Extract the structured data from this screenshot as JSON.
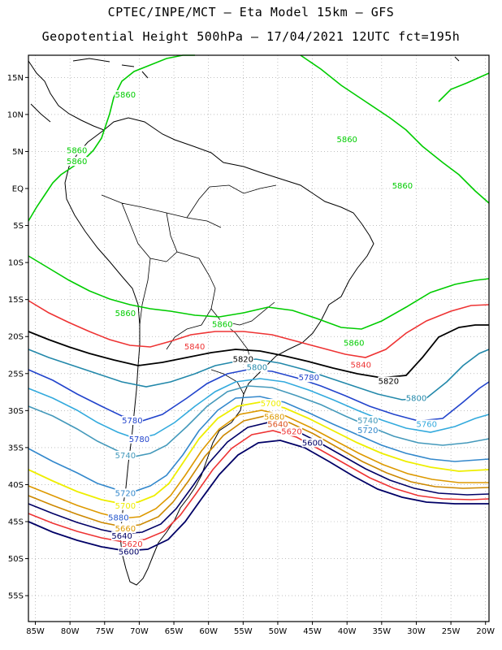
{
  "title": {
    "line1": "CPTEC/INPE/MCT  –  Eta Model 15km – GFS",
    "line2": "Geopotential Height 500hPa – 17/04/2021 12UTC fct=195h"
  },
  "axes": {
    "lat_labels": [
      "15N",
      "10N",
      "5N",
      "EQ",
      "5S",
      "10S",
      "15S",
      "20S",
      "25S",
      "30S",
      "35S",
      "40S",
      "45S",
      "50S",
      "55S"
    ],
    "lat_values": [
      15,
      10,
      5,
      0,
      -5,
      -10,
      -15,
      -20,
      -25,
      -30,
      -35,
      -40,
      -45,
      -50,
      -55
    ],
    "lon_labels": [
      "85W",
      "80W",
      "75W",
      "70W",
      "65W",
      "60W",
      "55W",
      "50W",
      "45W",
      "40W",
      "35W",
      "30W",
      "25W",
      "20W"
    ],
    "lon_values": [
      -85,
      -80,
      -75,
      -70,
      -65,
      -60,
      -55,
      -50,
      -45,
      -40,
      -35,
      -30,
      -25,
      -20
    ]
  },
  "contours": [
    {
      "level": "5860",
      "color": "#00cc00",
      "label_points": [
        [
          -72,
          12.5
        ],
        [
          -79,
          5
        ],
        [
          -79,
          3.5
        ],
        [
          -40,
          6.5
        ],
        [
          -32,
          0.2
        ],
        [
          -72,
          -17
        ],
        [
          -58,
          -18.5
        ],
        [
          -39,
          -21
        ]
      ]
    },
    {
      "level": "5840",
      "color": "#ee3333",
      "label_points": [
        [
          -62,
          -21.5
        ],
        [
          -38,
          -24
        ]
      ]
    },
    {
      "level": "5820",
      "color": "#000000",
      "label_points": [
        [
          -55,
          -23.2
        ],
        [
          -34,
          -26.2
        ]
      ]
    },
    {
      "level": "5800",
      "color": "#2288aa",
      "label_points": [
        [
          -53,
          -24.3
        ],
        [
          -30,
          -28.5
        ]
      ]
    },
    {
      "level": "5780",
      "color": "#2244cc",
      "label_points": [
        [
          -45.5,
          -25.7
        ],
        [
          -71,
          -31.5
        ],
        [
          -70,
          -34
        ]
      ]
    },
    {
      "level": "5760",
      "color": "#33aadd",
      "label_points": [
        [
          -28.5,
          -32
        ]
      ]
    },
    {
      "level": "5740",
      "color": "#4499bb",
      "label_points": [
        [
          -72,
          -36.2
        ],
        [
          -37,
          -31.5
        ]
      ]
    },
    {
      "level": "5720",
      "color": "#3388cc",
      "label_points": [
        [
          -72,
          -41.3
        ],
        [
          -37,
          -32.8
        ]
      ]
    },
    {
      "level": "5700",
      "color": "#eeee00",
      "label_points": [
        [
          -51,
          -29.2
        ],
        [
          -72,
          -43
        ]
      ]
    },
    {
      "level": "5680",
      "color": "#dd9900",
      "label_points": [
        [
          -50.5,
          -31
        ]
      ]
    },
    {
      "level": "5660",
      "color": "#cc8800",
      "label_points": [
        [
          -72,
          -46
        ]
      ]
    },
    {
      "level": "5640",
      "color": "#dd5522",
      "label_points": [
        [
          -50,
          -32
        ]
      ]
    },
    {
      "level": "5620",
      "color": "#ee3333",
      "label_points": [
        [
          -48,
          -33
        ]
      ]
    },
    {
      "level": "5600",
      "color": "#000066",
      "label_points": [
        [
          -45,
          -34.5
        ]
      ]
    }
  ],
  "left_labels": [
    {
      "text": "5880",
      "color": "#2255cc",
      "lon": -73,
      "lat": -44.6
    },
    {
      "text": "5660",
      "color": "#dd9900",
      "lon": -72,
      "lat": -46.1
    },
    {
      "text": "5640",
      "color": "#000066",
      "lon": -72.5,
      "lat": -47.1
    },
    {
      "text": "5620",
      "color": "#ee3333",
      "lon": -71,
      "lat": -48.2
    },
    {
      "text": "5600",
      "color": "#000066",
      "lon": -71.5,
      "lat": -49.2
    }
  ]
}
